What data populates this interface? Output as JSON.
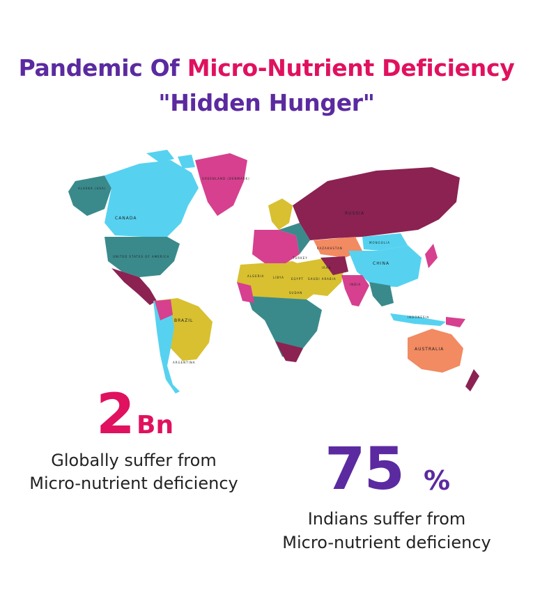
{
  "title": {
    "line1_part1": "Pandemic Of ",
    "line1_part2": "Micro-Nutrient Deficiency",
    "line2": "\"Hidden Hunger\""
  },
  "map_labels": {
    "greenland": "GREENLAND (DENMARK)",
    "alaska": "ALASKA (USA)",
    "canada": "CANADA",
    "usa": "UNITED STATES OF AMERICA",
    "brazil": "BRAZIL",
    "argentina": "ARGENTINA",
    "russia": "RUSSIA",
    "kazakhstan": "KAZAKHSTAN",
    "mongolia": "MONGOLIA",
    "china": "CHINA",
    "india": "INDIA",
    "australia": "AUSTRALIA",
    "algeria": "ALGERIA",
    "libya": "LIBYA",
    "egypt": "EGYPT",
    "saudi": "SAUDI ARABIA",
    "iran": "IRAN",
    "turkey": "TURKEY",
    "sudan": "SUDAN",
    "indonesia": "INDONESIA"
  },
  "colors": {
    "purple": "#5b2aa0",
    "pink": "#e0115f",
    "map_maroon": "#8b2252",
    "map_teal": "#3a8a8c",
    "map_cyan": "#56d2f0",
    "map_magenta": "#d6408f",
    "map_yellow": "#d8c030",
    "map_orange": "#f28a62"
  },
  "stat_global": {
    "number": "2",
    "unit": "Bn",
    "line1": "Globally suffer from",
    "line2": "Micro-nutrient deficiency"
  },
  "stat_india": {
    "number": "75",
    "unit": "%",
    "line1": "Indians suffer from",
    "line2": "Micro-nutrient deficiency"
  }
}
